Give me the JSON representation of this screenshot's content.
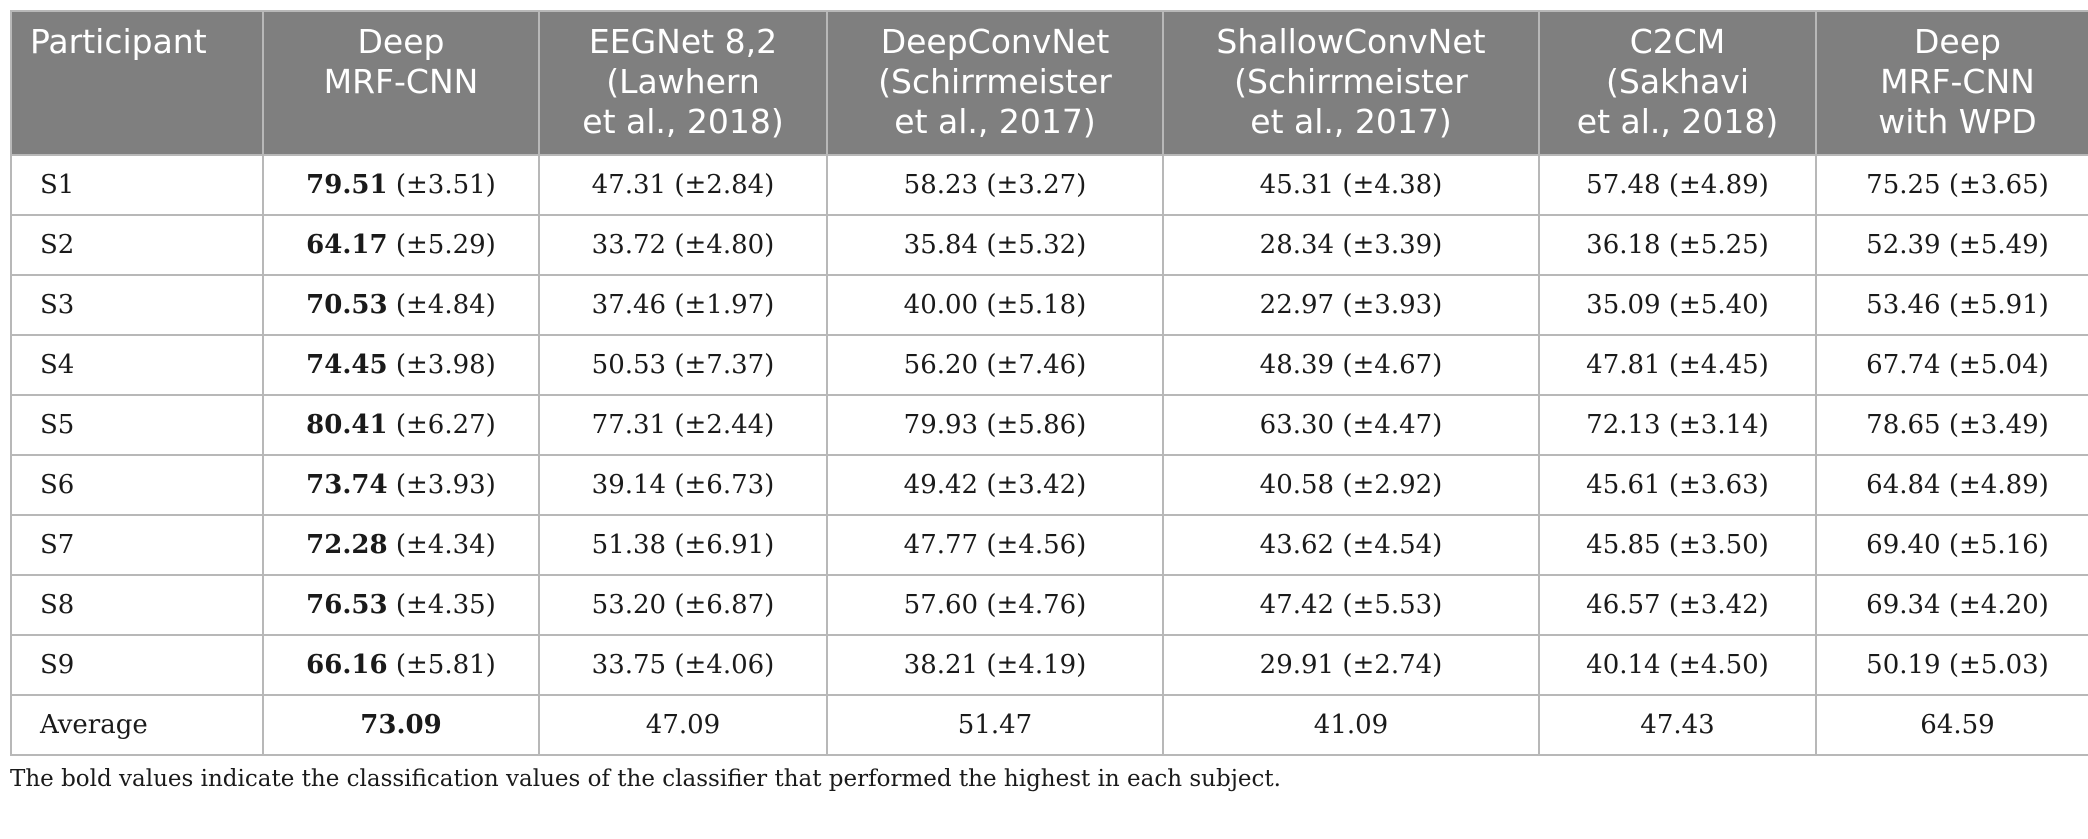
{
  "table": {
    "headers": [
      [
        "Participant"
      ],
      [
        "Deep",
        "MRF-CNN"
      ],
      [
        "EEGNet 8,2",
        "(Lawhern",
        "et al., 2018)"
      ],
      [
        "DeepConvNet",
        "(Schirrmeister",
        "et al., 2017)"
      ],
      [
        "ShallowConvNet",
        "(Schirrmeister",
        "et al., 2017)"
      ],
      [
        "C2CM",
        "(Sakhavi",
        "et al., 2018)"
      ],
      [
        "Deep",
        "MRF-CNN",
        "with WPD"
      ]
    ],
    "rows": [
      {
        "participant": "S1",
        "best_value": "79.51",
        "best_sd": " (±3.51)",
        "others": [
          "47.31 (±2.84)",
          "58.23 (±3.27)",
          "45.31 (±4.38)",
          "57.48 (±4.89)",
          "75.25 (±3.65)"
        ]
      },
      {
        "participant": "S2",
        "best_value": "64.17",
        "best_sd": " (±5.29)",
        "others": [
          "33.72 (±4.80)",
          "35.84 (±5.32)",
          "28.34 (±3.39)",
          "36.18 (±5.25)",
          "52.39 (±5.49)"
        ]
      },
      {
        "participant": "S3",
        "best_value": "70.53",
        "best_sd": " (±4.84)",
        "others": [
          "37.46 (±1.97)",
          "40.00 (±5.18)",
          "22.97 (±3.93)",
          "35.09 (±5.40)",
          "53.46 (±5.91)"
        ]
      },
      {
        "participant": "S4",
        "best_value": "74.45",
        "best_sd": " (±3.98)",
        "others": [
          "50.53 (±7.37)",
          "56.20 (±7.46)",
          "48.39 (±4.67)",
          "47.81 (±4.45)",
          "67.74 (±5.04)"
        ]
      },
      {
        "participant": "S5",
        "best_value": "80.41",
        "best_sd": " (±6.27)",
        "others": [
          "77.31 (±2.44)",
          "79.93 (±5.86)",
          "63.30 (±4.47)",
          "72.13 (±3.14)",
          "78.65 (±3.49)"
        ]
      },
      {
        "participant": "S6",
        "best_value": "73.74",
        "best_sd": " (±3.93)",
        "others": [
          "39.14 (±6.73)",
          "49.42 (±3.42)",
          "40.58 (±2.92)",
          "45.61 (±3.63)",
          "64.84 (±4.89)"
        ]
      },
      {
        "participant": "S7",
        "best_value": "72.28",
        "best_sd": " (±4.34)",
        "others": [
          "51.38 (±6.91)",
          "47.77 (±4.56)",
          "43.62 (±4.54)",
          "45.85 (±3.50)",
          "69.40 (±5.16)"
        ]
      },
      {
        "participant": "S8",
        "best_value": "76.53",
        "best_sd": " (±4.35)",
        "others": [
          "53.20 (±6.87)",
          "57.60 (±4.76)",
          "47.42 (±5.53)",
          "46.57 (±3.42)",
          "69.34 (±4.20)"
        ]
      },
      {
        "participant": "S9",
        "best_value": "66.16",
        "best_sd": " (±5.81)",
        "others": [
          "33.75 (±4.06)",
          "38.21 (±4.19)",
          "29.91 (±2.74)",
          "40.14 (±4.50)",
          "50.19 (±5.03)"
        ]
      },
      {
        "participant": "Average",
        "best_value": "73.09",
        "best_sd": "",
        "others": [
          "47.09",
          "51.47",
          "41.09",
          "47.43",
          "64.59"
        ]
      }
    ]
  },
  "footnote": "The bold values indicate the classification values of the classifier that performed the highest in each subject.",
  "colors": {
    "header_bg": "#7f7f7f",
    "header_text": "#ffffff",
    "grid": "#b8b8b8"
  }
}
